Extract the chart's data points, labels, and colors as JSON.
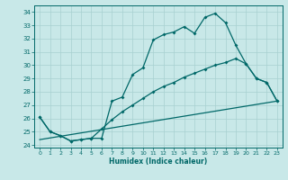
{
  "xlabel": "Humidex (Indice chaleur)",
  "bg_color": "#c8e8e8",
  "grid_color": "#a8d0d0",
  "line_color": "#006868",
  "xlim": [
    -0.5,
    23.5
  ],
  "ylim": [
    23.8,
    34.5
  ],
  "yticks": [
    24,
    25,
    26,
    27,
    28,
    29,
    30,
    31,
    32,
    33,
    34
  ],
  "xticks": [
    0,
    1,
    2,
    3,
    4,
    5,
    6,
    7,
    8,
    9,
    10,
    11,
    12,
    13,
    14,
    15,
    16,
    17,
    18,
    19,
    20,
    21,
    22,
    23
  ],
  "line1_x": [
    0,
    1,
    2,
    3,
    4,
    5,
    6,
    7,
    8,
    9,
    10,
    11,
    12,
    13,
    14,
    15,
    16,
    17,
    18,
    19,
    20,
    21,
    22,
    23
  ],
  "line1_y": [
    26.1,
    25.0,
    24.7,
    24.3,
    24.4,
    24.5,
    24.5,
    27.3,
    27.6,
    29.3,
    29.8,
    31.9,
    32.3,
    32.5,
    32.9,
    32.4,
    33.6,
    33.9,
    33.2,
    31.5,
    30.1,
    29.0,
    28.7,
    27.3
  ],
  "line2_x": [
    0,
    1,
    2,
    3,
    4,
    5,
    6,
    7,
    8,
    9,
    10,
    11,
    12,
    13,
    14,
    15,
    16,
    17,
    18,
    19,
    20,
    21,
    22,
    23
  ],
  "line2_y": [
    26.1,
    25.0,
    24.7,
    24.3,
    24.4,
    24.5,
    25.2,
    25.9,
    26.5,
    27.0,
    27.5,
    28.0,
    28.4,
    28.7,
    29.1,
    29.4,
    29.7,
    30.0,
    30.2,
    30.5,
    30.1,
    29.0,
    28.7,
    27.3
  ],
  "line3_x": [
    0,
    23
  ],
  "line3_y": [
    24.4,
    27.3
  ]
}
